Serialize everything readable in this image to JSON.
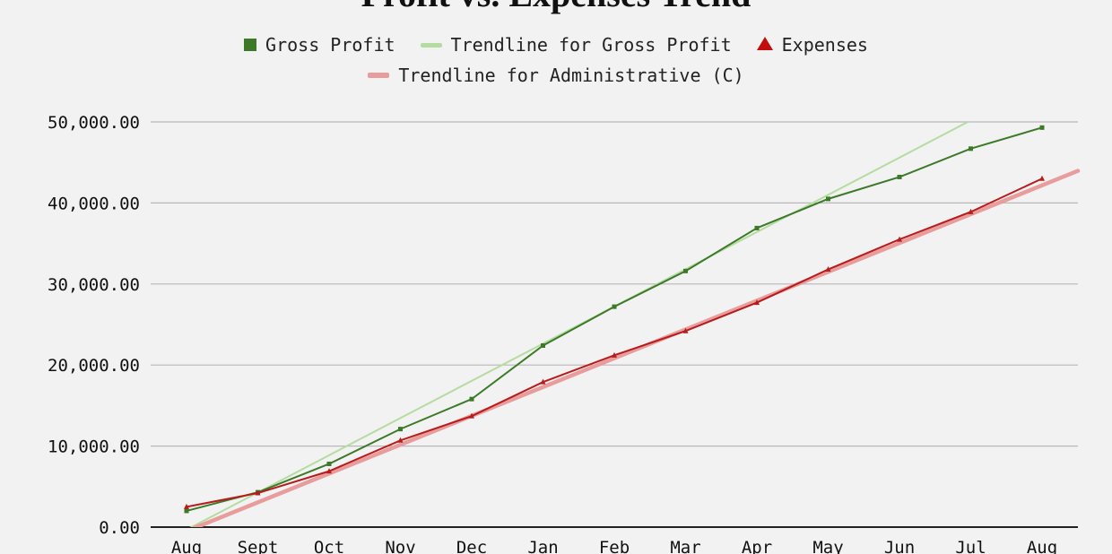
{
  "chart_data": {
    "type": "line",
    "title": "Profit vs. Expenses Trend",
    "categories": [
      "Aug",
      "Sept",
      "Oct",
      "Nov",
      "Dec",
      "Jan",
      "Feb",
      "Mar",
      "Apr",
      "May",
      "Jun",
      "Jul",
      "Aug"
    ],
    "yticks": [
      "0.00",
      "10,000.00",
      "20,000.00",
      "30,000.00",
      "40,000.00",
      "50,000.00"
    ],
    "ylim": [
      0,
      50000
    ],
    "grid": true,
    "legend_position": "top",
    "series": [
      {
        "name": "Gross Profit",
        "color": "#3c7a28",
        "marker": "square",
        "values": [
          2000,
          4300,
          7800,
          12100,
          15800,
          22400,
          27200,
          31600,
          36900,
          40500,
          43200,
          46700,
          49300
        ]
      },
      {
        "name": "Expenses",
        "color": "#b71c1c",
        "marker": "triangle",
        "values": [
          2500,
          4200,
          6900,
          10700,
          13700,
          17900,
          21200,
          24200,
          27700,
          31800,
          35500,
          38900,
          43000
        ]
      }
    ],
    "trendlines": [
      {
        "name": "Trendline for Gross Profit",
        "color": "#b5dca0",
        "start": [
          0,
          200
        ],
        "end": [
          12,
          54800
        ]
      },
      {
        "name": "Trendline for Administrative (C)",
        "color": "#e89c9c",
        "start": [
          0,
          200
        ],
        "end": [
          12,
          42200
        ]
      }
    ]
  }
}
